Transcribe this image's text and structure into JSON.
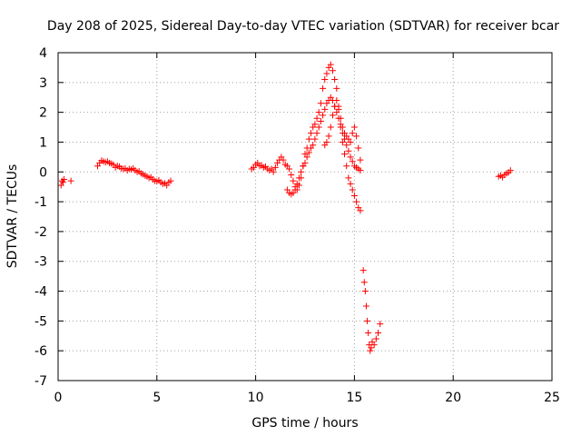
{
  "chart_data": {
    "type": "scatter",
    "title": "Day 208 of 2025, Sidereal Day-to-day VTEC variation (SDTVAR) for receiver bcar",
    "xlabel": "GPS time / hours",
    "ylabel": "SDTVAR / TECUs",
    "xlim": [
      0,
      25
    ],
    "ylim": [
      -7,
      4
    ],
    "xticks": [
      0,
      5,
      10,
      15,
      20,
      25
    ],
    "yticks": [
      -7,
      -6,
      -5,
      -4,
      -3,
      -2,
      -1,
      0,
      1,
      2,
      3,
      4
    ],
    "grid": true,
    "marker": "+",
    "color": "#ff0000",
    "series": [
      {
        "name": "SDTVAR",
        "x": [
          0.15,
          0.2,
          0.25,
          0.3,
          0.65,
          2.0,
          2.1,
          2.2,
          2.3,
          2.4,
          2.5,
          2.6,
          2.7,
          2.8,
          2.9,
          3.0,
          3.1,
          3.2,
          3.3,
          3.4,
          3.5,
          3.6,
          3.7,
          3.8,
          3.9,
          4.0,
          4.1,
          4.2,
          4.3,
          4.4,
          4.5,
          4.6,
          4.7,
          4.8,
          4.9,
          5.0,
          5.1,
          5.2,
          5.3,
          5.4,
          5.5,
          5.6,
          5.7,
          9.8,
          9.9,
          10.0,
          10.1,
          10.2,
          10.3,
          10.4,
          10.5,
          10.6,
          10.7,
          10.8,
          10.9,
          11.0,
          11.1,
          11.2,
          11.3,
          11.4,
          11.5,
          11.6,
          11.7,
          11.8,
          11.9,
          12.0,
          12.1,
          12.2,
          12.3,
          12.4,
          12.5,
          12.6,
          12.7,
          12.8,
          12.9,
          13.0,
          13.1,
          13.2,
          13.3,
          13.4,
          13.5,
          13.6,
          13.7,
          13.8,
          13.9,
          14.0,
          14.1,
          14.2,
          14.3,
          14.4,
          14.5,
          14.6,
          14.7,
          14.8,
          14.9,
          15.0,
          15.1,
          15.2,
          15.3,
          11.6,
          11.7,
          11.8,
          11.9,
          12.0,
          12.1,
          12.2,
          12.3,
          12.4,
          12.5,
          12.6,
          12.7,
          12.8,
          12.9,
          13.0,
          13.1,
          13.2,
          13.3,
          13.4,
          13.5,
          13.6,
          13.7,
          13.8,
          13.9,
          14.0,
          14.1,
          14.2,
          14.3,
          14.4,
          14.5,
          14.6,
          14.7,
          14.8,
          14.9,
          15.0,
          15.1,
          15.2,
          15.3,
          13.5,
          13.6,
          13.7,
          13.8,
          13.9,
          14.0,
          14.1,
          14.2,
          14.3,
          14.4,
          14.5,
          14.6,
          14.7,
          14.8,
          14.9,
          15.0,
          15.1,
          15.2,
          15.3,
          15.45,
          15.5,
          15.55,
          15.6,
          15.65,
          15.7,
          15.75,
          15.8,
          15.85,
          15.9,
          16.0,
          16.1,
          16.2,
          16.3,
          22.3,
          22.4,
          22.5,
          22.6,
          22.7,
          22.8,
          22.9
        ],
        "y": [
          -0.45,
          -0.3,
          -0.35,
          -0.25,
          -0.3,
          0.2,
          0.3,
          0.38,
          0.35,
          0.32,
          0.35,
          0.3,
          0.28,
          0.25,
          0.15,
          0.2,
          0.18,
          0.12,
          0.1,
          0.12,
          0.05,
          0.1,
          0.08,
          0.12,
          0.05,
          0.0,
          0.02,
          -0.05,
          -0.08,
          -0.12,
          -0.15,
          -0.2,
          -0.18,
          -0.25,
          -0.3,
          -0.32,
          -0.28,
          -0.35,
          -0.4,
          -0.38,
          -0.45,
          -0.35,
          -0.3,
          0.1,
          0.15,
          0.25,
          0.3,
          0.2,
          0.22,
          0.15,
          0.18,
          0.1,
          0.05,
          0.1,
          0.0,
          0.15,
          0.3,
          0.4,
          0.5,
          0.4,
          0.25,
          0.2,
          0.1,
          -0.1,
          -0.3,
          -0.5,
          -0.6,
          -0.45,
          -0.2,
          0.2,
          0.6,
          0.8,
          1.1,
          1.3,
          1.5,
          1.6,
          1.8,
          2.0,
          2.3,
          2.8,
          3.1,
          3.3,
          3.5,
          3.6,
          3.4,
          3.1,
          2.8,
          2.2,
          1.6,
          1.0,
          0.6,
          0.2,
          -0.2,
          -0.4,
          -0.6,
          -0.8,
          -1.0,
          -1.2,
          -1.3,
          -0.6,
          -0.7,
          -0.75,
          -0.7,
          -0.6,
          -0.4,
          -0.2,
          0.0,
          0.2,
          0.3,
          0.5,
          0.65,
          0.8,
          0.9,
          1.1,
          1.3,
          1.5,
          1.7,
          1.9,
          2.1,
          2.3,
          2.4,
          2.5,
          2.4,
          2.2,
          2.0,
          1.8,
          1.5,
          1.3,
          1.1,
          0.9,
          0.7,
          0.5,
          0.35,
          0.2,
          0.15,
          0.1,
          0.05,
          0.9,
          1.0,
          1.2,
          1.5,
          1.9,
          2.2,
          2.4,
          2.1,
          1.8,
          1.5,
          1.3,
          1.2,
          1.1,
          1.0,
          1.3,
          1.5,
          1.2,
          0.8,
          0.4,
          -3.3,
          -3.7,
          -4.0,
          -4.5,
          -5.0,
          -5.4,
          -5.8,
          -6.0,
          -5.9,
          -5.7,
          -5.8,
          -5.6,
          -5.4,
          -5.1,
          -0.15,
          -0.12,
          -0.18,
          -0.1,
          -0.05,
          -0.02,
          0.05
        ]
      }
    ]
  }
}
